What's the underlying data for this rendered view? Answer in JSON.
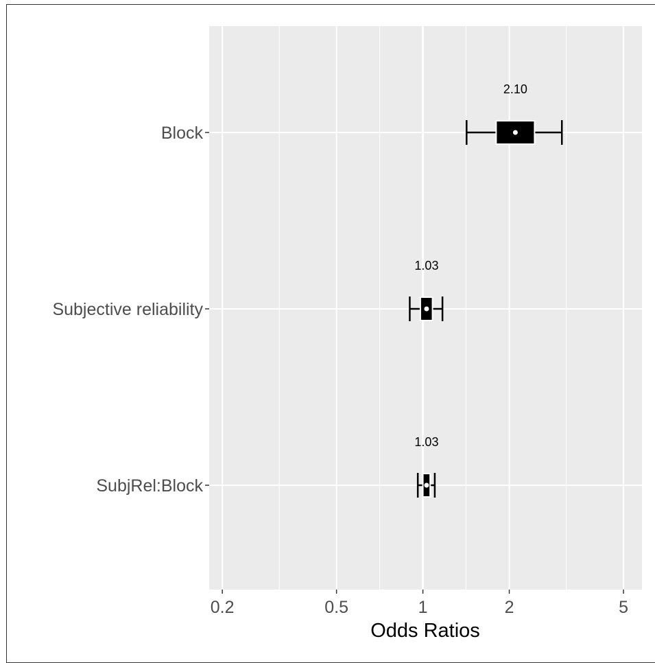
{
  "chart_data": {
    "type": "forest",
    "xlabel": "Odds Ratios",
    "x_scale": "log",
    "xlim": [
      0.18,
      5.8
    ],
    "x_ticks": [
      {
        "value": 0.2,
        "label": "0.2"
      },
      {
        "value": 0.5,
        "label": "0.5"
      },
      {
        "value": 1,
        "label": "1"
      },
      {
        "value": 2,
        "label": "2"
      },
      {
        "value": 5,
        "label": "5"
      }
    ],
    "x_minor_gridlines": [
      0.316,
      0.707,
      1.414,
      3.162
    ],
    "reference_line": 1,
    "grid": true,
    "background": "#ebebeb",
    "grid_color": "#ffffff",
    "mark_color": "#000000",
    "rows": [
      {
        "label": "Block",
        "estimate": 2.1,
        "estimate_label": "2.10",
        "box": [
          1.8,
          2.45
        ],
        "ci": [
          1.42,
          3.05
        ]
      },
      {
        "label": "Subjective reliability",
        "estimate": 1.03,
        "estimate_label": "1.03",
        "box": [
          0.98,
          1.08
        ],
        "ci": [
          0.9,
          1.17
        ]
      },
      {
        "label": "SubjRel:Block",
        "estimate": 1.03,
        "estimate_label": "1.03",
        "box": [
          1.0,
          1.06
        ],
        "ci": [
          0.96,
          1.1
        ]
      }
    ]
  }
}
